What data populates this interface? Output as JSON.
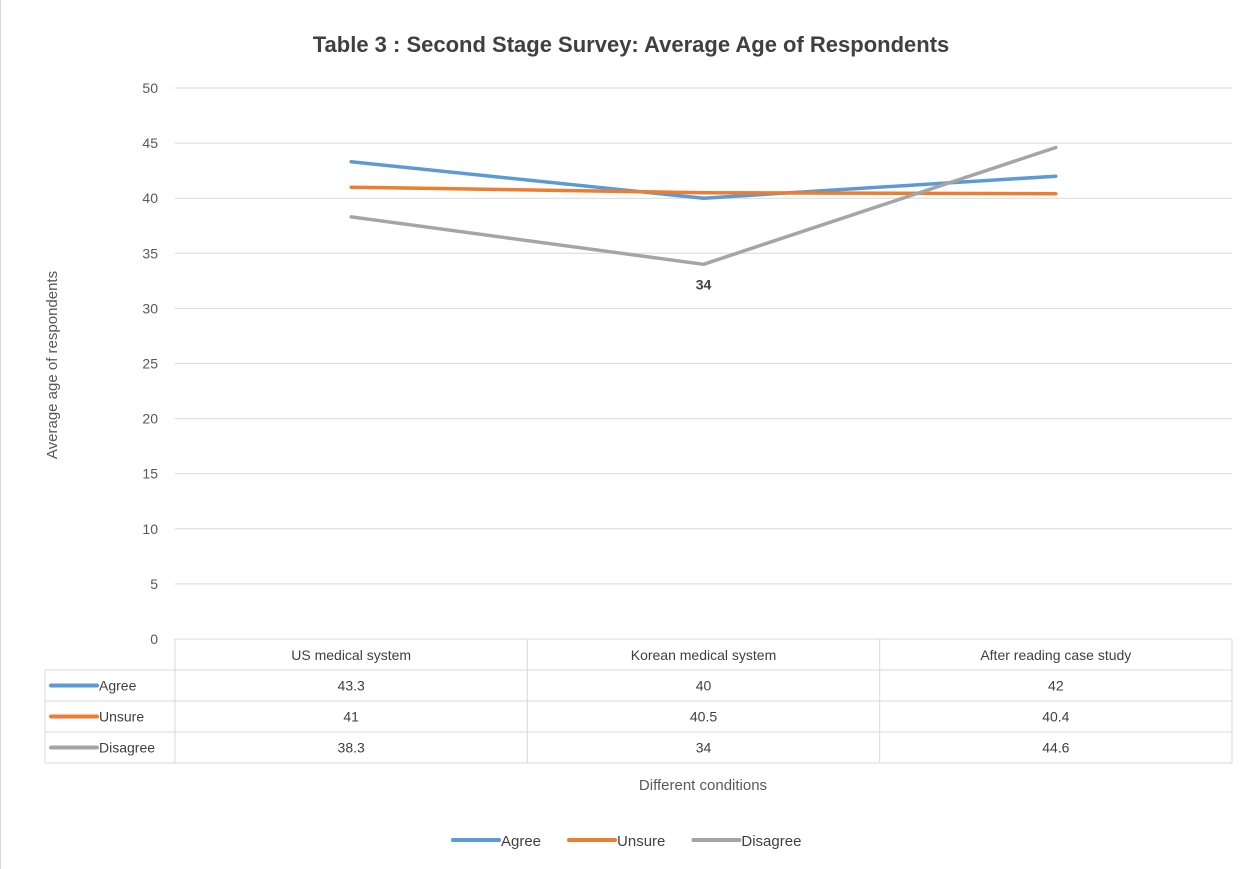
{
  "chart_data": {
    "type": "line",
    "title": "Table 3 : Second  Stage Survey: Average Age of Respondents",
    "xlabel": "Different conditions",
    "ylabel": "Average age of respondents",
    "ylim": [
      0,
      50
    ],
    "yticks": [
      0,
      5,
      10,
      15,
      20,
      25,
      30,
      35,
      40,
      45,
      50
    ],
    "categories": [
      "US medical system",
      "Korean medical system",
      "After reading case study"
    ],
    "series": [
      {
        "name": "Agree",
        "color": "#5b9bd5",
        "values": [
          43.3,
          40,
          42
        ],
        "display": [
          "43.3",
          "40",
          "42"
        ]
      },
      {
        "name": "Unsure",
        "color": "#ed7d31",
        "values": [
          41,
          40.5,
          40.4
        ],
        "display": [
          "41",
          "40.5",
          "40.4"
        ]
      },
      {
        "name": "Disagree",
        "color": "#a5a5a5",
        "values": [
          38.3,
          34,
          44.6
        ],
        "display": [
          "38.3",
          "34",
          "44.6"
        ]
      }
    ],
    "annotations": [
      {
        "series": "Disagree",
        "category": "Korean medical system",
        "text": "34"
      }
    ],
    "grid": true,
    "data_table": true,
    "legend_position": "bottom"
  }
}
